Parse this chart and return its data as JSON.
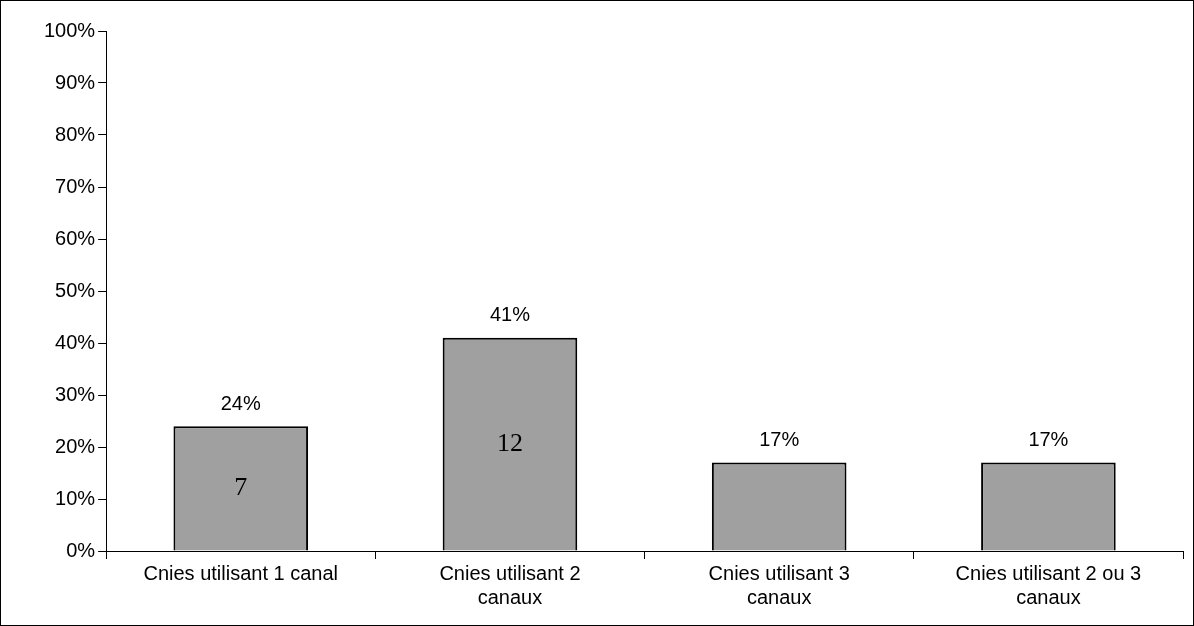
{
  "chart_data": {
    "type": "bar",
    "categories": [
      "Cnies utilisant 1 canal",
      "Cnies utilisant 2 canaux",
      "Cnies utilisant 3 canaux",
      "Cnies utilisant 2 ou 3 canaux"
    ],
    "values": [
      24,
      41,
      17,
      17
    ],
    "value_labels": [
      "24%",
      "41%",
      "17%",
      "17%"
    ],
    "color": "#a0a0a0",
    "ylim": [
      0,
      100
    ],
    "yticks": [
      {
        "value": 0,
        "label": "0%"
      },
      {
        "value": 10,
        "label": "10%"
      },
      {
        "value": 20,
        "label": "20%"
      },
      {
        "value": 30,
        "label": "30%"
      },
      {
        "value": 40,
        "label": "40%"
      },
      {
        "value": 50,
        "label": "50%"
      },
      {
        "value": 60,
        "label": "60%"
      },
      {
        "value": 70,
        "label": "70%"
      },
      {
        "value": 80,
        "label": "80%"
      },
      {
        "value": 90,
        "label": "90%"
      },
      {
        "value": 100,
        "label": "100%"
      }
    ],
    "annotations": [
      "7",
      "12"
    ],
    "grid": false,
    "legend": false
  }
}
